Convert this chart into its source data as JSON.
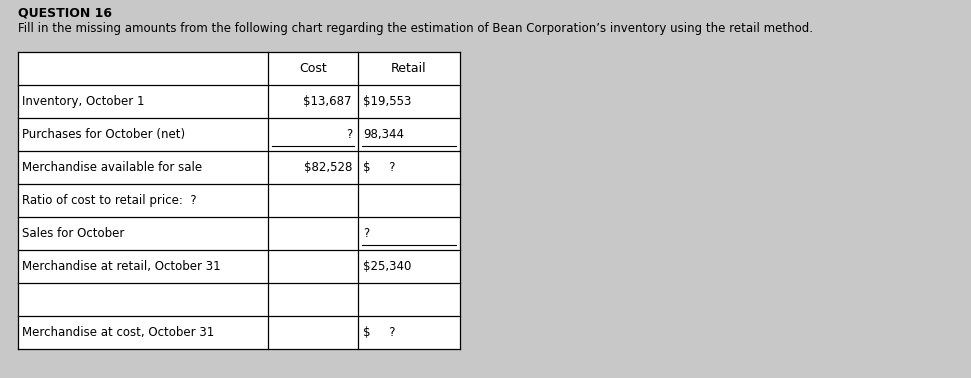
{
  "title_question": "QUESTION 16",
  "subtitle": "Fill in the missing amounts from the following chart regarding the estimation of Bean Corporation’s inventory using the retail method.",
  "rows": [
    {
      "label": "Inventory, October 1",
      "cost": "$13,687",
      "retail": "$19,553",
      "cost_ul": false,
      "retail_ul": false
    },
    {
      "label": "Purchases for October (net)",
      "cost": "?",
      "retail": "98,344",
      "cost_ul": true,
      "retail_ul": true
    },
    {
      "label": "Merchandise available for sale",
      "cost": "$82,528",
      "retail": "$     ?",
      "cost_ul": false,
      "retail_ul": false
    },
    {
      "label": "Ratio of cost to retail price:  ?",
      "cost": "",
      "retail": "",
      "cost_ul": false,
      "retail_ul": false
    },
    {
      "label": "Sales for October",
      "cost": "",
      "retail": "?",
      "cost_ul": false,
      "retail_ul": true
    },
    {
      "label": "Merchandise at retail, October 31",
      "cost": "",
      "retail": "$25,340",
      "cost_ul": false,
      "retail_ul": false
    },
    {
      "label": "",
      "cost": "",
      "retail": "",
      "cost_ul": false,
      "retail_ul": false
    },
    {
      "label": "Merchandise at cost, October 31",
      "cost": "",
      "retail": "$     ?",
      "cost_ul": false,
      "retail_ul": false
    }
  ],
  "fig_bg": "#c8c8c8",
  "table_bg": "#ffffff",
  "figsize": [
    9.71,
    3.78
  ],
  "dpi": 100
}
